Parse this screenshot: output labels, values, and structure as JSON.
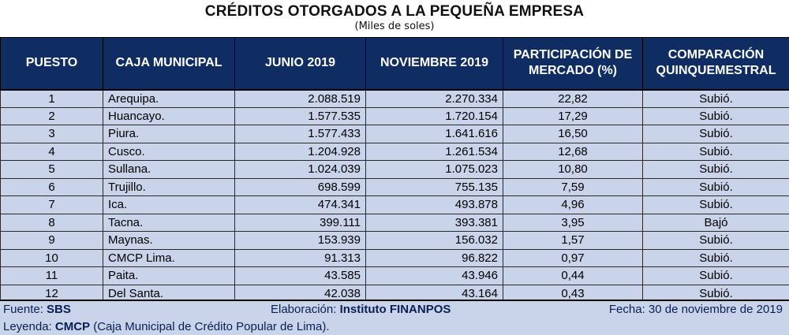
{
  "title": "CRÉDITOS OTORGADOS A LA PEQUEÑA EMPRESA",
  "subtitle": "(Miles de soles)",
  "headers": {
    "puesto": "PUESTO",
    "caja": "CAJA MUNICIPAL",
    "junio": "JUNIO 2019",
    "noviembre": "NOVIEMBRE 2019",
    "participacion_l1": "PARTICIPACIÓN DE",
    "participacion_l2": "MERCADO (%)",
    "comparacion_l1": "COMPARACIÓN",
    "comparacion_l2": "QUINQUEMESTRAL"
  },
  "rows": [
    {
      "puesto": "1",
      "caja": "Arequipa.",
      "junio": "2.088.519",
      "noviembre": "2.270.334",
      "participacion": "22,82",
      "comparacion": "Subió."
    },
    {
      "puesto": "2",
      "caja": "Huancayo.",
      "junio": "1.577.535",
      "noviembre": "1.720.154",
      "participacion": "17,29",
      "comparacion": "Subió."
    },
    {
      "puesto": "3",
      "caja": "Piura.",
      "junio": "1.577.433",
      "noviembre": "1.641.616",
      "participacion": "16,50",
      "comparacion": "Subió."
    },
    {
      "puesto": "4",
      "caja": "Cusco.",
      "junio": "1.204.928",
      "noviembre": "1.261.534",
      "participacion": "12,68",
      "comparacion": "Subió."
    },
    {
      "puesto": "5",
      "caja": "Sullana.",
      "junio": "1.024.039",
      "noviembre": "1.075.023",
      "participacion": "10,80",
      "comparacion": "Subió."
    },
    {
      "puesto": "6",
      "caja": "Trujillo.",
      "junio": "698.599",
      "noviembre": "755.135",
      "participacion": "7,59",
      "comparacion": "Subió."
    },
    {
      "puesto": "7",
      "caja": "Ica.",
      "junio": "474.341",
      "noviembre": "493.878",
      "participacion": "4,96",
      "comparacion": "Subió."
    },
    {
      "puesto": "8",
      "caja": "Tacna.",
      "junio": "399.111",
      "noviembre": "393.381",
      "participacion": "3,95",
      "comparacion": "Bajó"
    },
    {
      "puesto": "9",
      "caja": "Maynas.",
      "junio": "153.939",
      "noviembre": "156.032",
      "participacion": "1,57",
      "comparacion": "Subió."
    },
    {
      "puesto": "10",
      "caja": "CMCP Lima.",
      "junio": "91.313",
      "noviembre": "96.822",
      "participacion": "0,97",
      "comparacion": "Subió."
    },
    {
      "puesto": "11",
      "caja": "Paita.",
      "junio": "43.585",
      "noviembre": "43.946",
      "participacion": "0,44",
      "comparacion": "Subió."
    },
    {
      "puesto": "12",
      "caja": "Del Santa.",
      "junio": "42.038",
      "noviembre": "43.164",
      "participacion": "0,43",
      "comparacion": "Subió."
    }
  ],
  "footer": {
    "fuente_label": "Fuente: ",
    "fuente_value": "SBS",
    "elaboracion_label": "Elaboración: ",
    "elaboracion_value": "Instituto FINANPOS",
    "fecha": "Fecha: 30 de noviembre de 2019",
    "leyenda_label": "Leyenda: ",
    "leyenda_value": "CMCP",
    "leyenda_text": " (Caja Municipal de Crédito Popular de Lima)."
  },
  "colors": {
    "header_bg": "#0f2d63",
    "row_bg": "#c9d3ea",
    "footer_text": "#0a1f52"
  }
}
